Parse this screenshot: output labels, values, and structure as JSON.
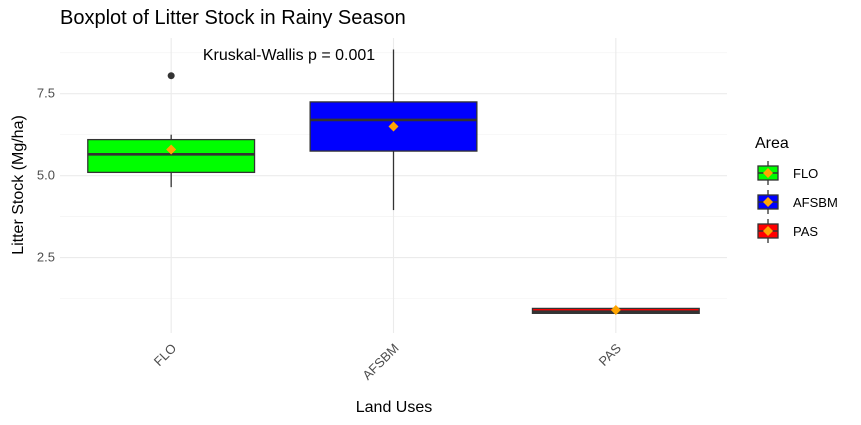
{
  "chart_data": {
    "type": "boxplot",
    "title": "Boxplot of Litter Stock in Rainy Season",
    "xlabel": "Land Uses",
    "ylabel": "Litter Stock (Mg/ha)",
    "ylim": [
      0.2,
      9.2
    ],
    "y_ticks": [
      2.5,
      5.0,
      7.5
    ],
    "y_tick_labels": [
      "2.5",
      "5.0",
      "7.5"
    ],
    "grid": true,
    "annotation": "Kruskal-Wallis p = 0.001",
    "categories": [
      "FLO",
      "AFSBM",
      "PAS"
    ],
    "boxes": [
      {
        "category": "FLO",
        "min": 4.65,
        "q1": 5.1,
        "median": 5.65,
        "q3": 6.1,
        "max": 6.25,
        "mean": 5.8,
        "outliers": [
          8.05
        ],
        "fill": "#00ff00"
      },
      {
        "category": "AFSBM",
        "min": 3.95,
        "q1": 5.75,
        "median": 6.7,
        "q3": 7.25,
        "max": 8.85,
        "mean": 6.5,
        "outliers": [],
        "fill": "#0000ff"
      },
      {
        "category": "PAS",
        "min": 0.8,
        "q1": 0.8,
        "median": 0.85,
        "q3": 0.95,
        "max": 0.95,
        "mean": 0.9,
        "outliers": [],
        "fill": "#ff0000"
      }
    ],
    "mean_marker_color": "#ffa500",
    "legend": {
      "title": "Area",
      "placement": "right",
      "items": [
        {
          "label": "FLO",
          "fill": "#00ff00"
        },
        {
          "label": "AFSBM",
          "fill": "#0000ff"
        },
        {
          "label": "PAS",
          "fill": "#ff0000"
        }
      ]
    }
  }
}
